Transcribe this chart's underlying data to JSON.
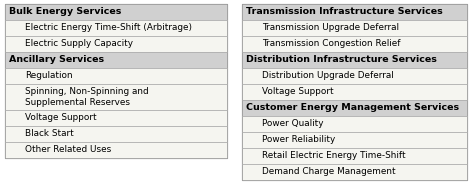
{
  "left_sections": [
    {
      "header": "Bulk Energy Services",
      "items": [
        {
          "text": "Electric Energy Time-Shift (Arbitrage)",
          "lines": 1
        },
        {
          "text": "Electric Supply Capacity",
          "lines": 1
        }
      ]
    },
    {
      "header": "Ancillary Services",
      "items": [
        {
          "text": "Regulation",
          "lines": 1
        },
        {
          "text": "Spinning, Non-Spinning and\nSupplemental Reserves",
          "lines": 2
        },
        {
          "text": "Voltage Support",
          "lines": 1
        },
        {
          "text": "Black Start",
          "lines": 1
        },
        {
          "text": "Other Related Uses",
          "lines": 1
        }
      ]
    }
  ],
  "right_sections": [
    {
      "header": "Transmission Infrastructure Services",
      "items": [
        {
          "text": "Transmission Upgrade Deferral",
          "lines": 1
        },
        {
          "text": "Transmission Congestion Relief",
          "lines": 1
        }
      ]
    },
    {
      "header": "Distribution Infrastructure Services",
      "items": [
        {
          "text": "Distribution Upgrade Deferral",
          "lines": 1
        },
        {
          "text": "Voltage Support",
          "lines": 1
        }
      ]
    },
    {
      "header": "Customer Energy Management Services",
      "items": [
        {
          "text": "Power Quality",
          "lines": 1
        },
        {
          "text": "Power Reliability",
          "lines": 1
        },
        {
          "text": "Retail Electric Energy Time-Shift",
          "lines": 1
        },
        {
          "text": "Demand Charge Management",
          "lines": 1
        }
      ]
    }
  ],
  "header_bg": "#d0d0d0",
  "item_bg": "#f5f5f0",
  "outer_border": "#555555",
  "inner_border": "#aaaaaa",
  "header_fontsize": 6.8,
  "item_fontsize": 6.4,
  "header_font_weight": "bold",
  "item_font_weight": "normal",
  "fig_bg": "#ffffff",
  "fig_width": 4.72,
  "fig_height": 1.95,
  "dpi": 100
}
